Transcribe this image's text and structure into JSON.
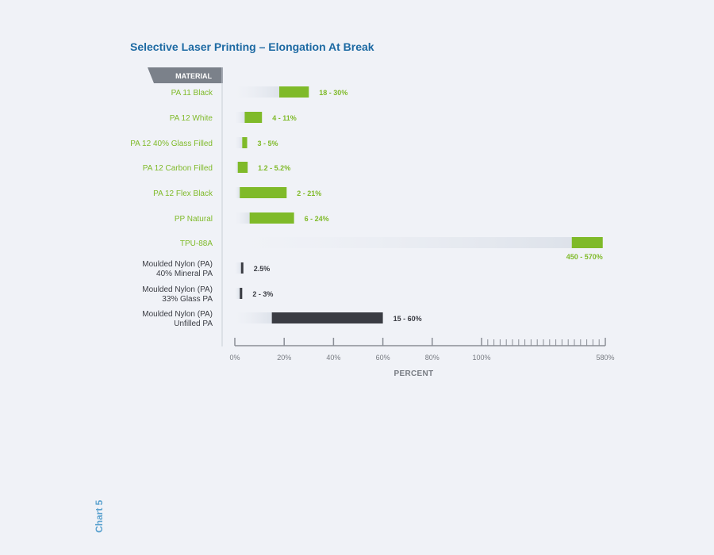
{
  "side_label": "Chart 5",
  "chart_data": {
    "type": "bar",
    "title": "Selective Laser Printing – Elongation At Break",
    "category_header": "MATERIAL",
    "xlabel": "PERCENT",
    "ylabel": "",
    "x_axis": {
      "ticks": [
        "0%",
        "20%",
        "40%",
        "60%",
        "80%",
        "100%",
        "580%"
      ],
      "linear_range": [
        0,
        100
      ],
      "compressed_range": [
        100,
        580
      ],
      "note_scale": "broken"
    },
    "grid": false,
    "colors": {
      "title": "#1d6aa3",
      "sls": "#7fba29",
      "moulded": "#3a3c43",
      "header_bg": "#7b818a",
      "axis": "#8a8e96",
      "side_label": "#5ba2cf",
      "black_text": "#1e1f24"
    },
    "categories": [
      {
        "name": "PA 11 Black",
        "group": "sls",
        "min": 18,
        "max": 30,
        "label": "18 - 30%"
      },
      {
        "name": "PA 12 White",
        "group": "sls",
        "min": 4,
        "max": 11,
        "label": "4 - 11%"
      },
      {
        "name": "PA 12 40% Glass Filled",
        "group": "sls",
        "min": 3,
        "max": 5,
        "label": "3 - 5%"
      },
      {
        "name": "PA 12 Carbon Filled",
        "group": "sls",
        "min": 1.2,
        "max": 5.2,
        "label": "1.2 - 5.2%"
      },
      {
        "name": "PA 12 Flex Black",
        "group": "sls",
        "min": 2,
        "max": 21,
        "label": "2 - 21%"
      },
      {
        "name": "PP Natural",
        "group": "sls",
        "min": 6,
        "max": 24,
        "label": "6 - 24%"
      },
      {
        "name": "TPU-88A",
        "group": "sls",
        "min": 450,
        "max": 570,
        "label": "450 - 570%"
      },
      {
        "name": "Moulded Nylon (PA)\n40% Mineral PA",
        "group": "moulded",
        "min": 2.5,
        "max": 2.5,
        "label": "2.5%"
      },
      {
        "name": "Moulded Nylon (PA)\n33% Glass PA",
        "group": "moulded",
        "min": 2,
        "max": 3,
        "label": "2 - 3%"
      },
      {
        "name": "Moulded Nylon (PA)\nUnfilled PA",
        "group": "moulded",
        "min": 15,
        "max": 60,
        "label": "15 - 60%"
      }
    ]
  }
}
